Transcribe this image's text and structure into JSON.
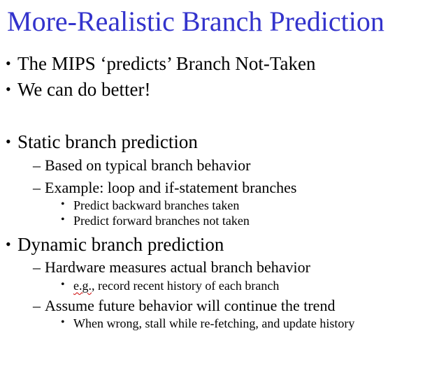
{
  "slide": {
    "title": "More-Realistic Branch Prediction",
    "title_color": "#3333cc",
    "bullet_glyph": "•",
    "dash_glyph": "–",
    "items": [
      {
        "text": "The MIPS ‘predicts’ Branch Not-Taken"
      },
      {
        "text": "We can do better!"
      },
      {
        "text": "Static branch prediction",
        "sub": [
          {
            "text": "Based on typical branch behavior"
          },
          {
            "text": "Example: loop and if-statement branches",
            "sub": [
              {
                "text": "Predict backward branches taken"
              },
              {
                "text": "Predict forward branches not taken"
              }
            ]
          }
        ]
      },
      {
        "text": "Dynamic branch prediction",
        "sub": [
          {
            "text": "Hardware measures actual branch behavior",
            "sub": [
              {
                "prefix": "e.g.",
                "text": ", record recent history of each branch"
              }
            ]
          },
          {
            "text": "Assume future behavior will continue the trend",
            "sub": [
              {
                "text": "When wrong, stall while re-fetching, and update history"
              }
            ]
          }
        ]
      }
    ]
  }
}
